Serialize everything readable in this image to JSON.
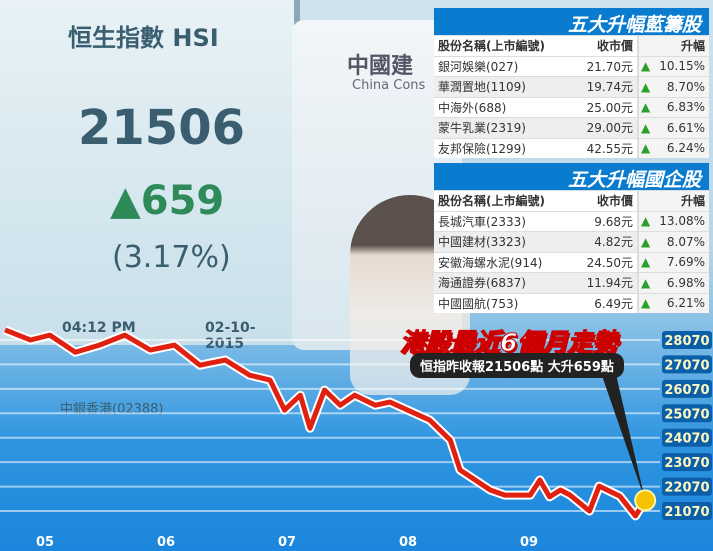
{
  "photo": {
    "index_name": "恒生指數 HSI",
    "index_value": "21506",
    "change": "▲659",
    "change_pct": "(3.17%)",
    "time": "04:12 PM",
    "date": "02-10-2015",
    "bank": "中國建",
    "bank_en": "China Cons",
    "ticker_row": "中銀香港(02388)"
  },
  "bluechip": {
    "title": "五大升幅藍籌股",
    "headers": [
      "股份名稱(上市編號)",
      "收市價",
      "升幅"
    ],
    "rows": [
      [
        "銀河娛樂(027)",
        "21.70元",
        "10.15%"
      ],
      [
        "華潤置地(1109)",
        "19.74元",
        "8.70%"
      ],
      [
        "中海外(688)",
        "25.00元",
        "6.83%"
      ],
      [
        "蒙牛乳業(2319)",
        "29.00元",
        "6.61%"
      ],
      [
        "友邦保險(1299)",
        "42.55元",
        "6.24%"
      ]
    ]
  },
  "hshares": {
    "title": "五大升幅國企股",
    "headers": [
      "股份名稱(上市編號)",
      "收市價",
      "升幅"
    ],
    "rows": [
      [
        "長城汽車(2333)",
        "9.68元",
        "13.08%"
      ],
      [
        "中國建材(3323)",
        "4.82元",
        "8.07%"
      ],
      [
        "安徽海螺水泥(914)",
        "24.50元",
        "7.69%"
      ],
      [
        "海通證券(6837)",
        "11.94元",
        "6.98%"
      ],
      [
        "中國國航(753)",
        "6.49元",
        "6.21%"
      ]
    ]
  },
  "chart_data": {
    "type": "line",
    "title": "港股最近6個月走勢",
    "subtitle": "恒指昨收報21506點  大升659點",
    "x_ticks": [
      "05",
      "06",
      "07",
      "08",
      "09"
    ],
    "y_ticks": [
      28070,
      27070,
      26070,
      25070,
      24070,
      23070,
      22070,
      21070
    ],
    "ylim": [
      20500,
      28600
    ],
    "grid": true,
    "line_color": "#e02010",
    "points": [
      [
        4.67,
        28480
      ],
      [
        4.88,
        28070
      ],
      [
        5.04,
        28270
      ],
      [
        5.25,
        27570
      ],
      [
        5.45,
        27860
      ],
      [
        5.66,
        28270
      ],
      [
        5.87,
        27660
      ],
      [
        6.07,
        27860
      ],
      [
        6.28,
        27040
      ],
      [
        6.49,
        27250
      ],
      [
        6.69,
        26630
      ],
      [
        6.86,
        26430
      ],
      [
        6.98,
        25200
      ],
      [
        7.11,
        25810
      ],
      [
        7.19,
        24460
      ],
      [
        7.31,
        26020
      ],
      [
        7.44,
        25400
      ],
      [
        7.56,
        25810
      ],
      [
        7.73,
        25400
      ],
      [
        7.85,
        25530
      ],
      [
        8.18,
        24790
      ],
      [
        8.35,
        23970
      ],
      [
        8.43,
        22750
      ],
      [
        8.68,
        21930
      ],
      [
        8.8,
        21720
      ],
      [
        9.01,
        21720
      ],
      [
        9.09,
        22340
      ],
      [
        9.17,
        21650
      ],
      [
        9.26,
        21930
      ],
      [
        9.34,
        21720
      ],
      [
        9.5,
        21070
      ],
      [
        9.58,
        22090
      ],
      [
        9.75,
        21680
      ],
      [
        9.88,
        20870
      ],
      [
        9.96,
        21506
      ]
    ]
  }
}
